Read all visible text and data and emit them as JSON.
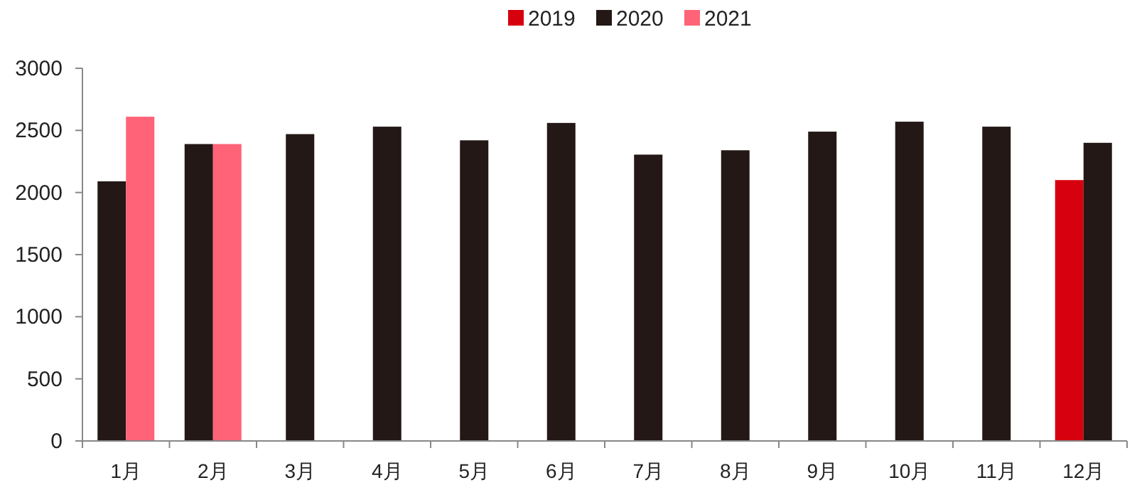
{
  "chart_data": {
    "type": "bar",
    "categories": [
      "1月",
      "2月",
      "3月",
      "4月",
      "5月",
      "6月",
      "7月",
      "8月",
      "9月",
      "10月",
      "11月",
      "12月"
    ],
    "series": [
      {
        "name": "2019",
        "color": "#d7000f",
        "values": [
          null,
          null,
          null,
          null,
          null,
          null,
          null,
          null,
          null,
          null,
          null,
          2100
        ]
      },
      {
        "name": "2020",
        "color": "#231815",
        "values": [
          2090,
          2390,
          2470,
          2530,
          2420,
          2560,
          2305,
          2340,
          2490,
          2570,
          2530,
          2400
        ]
      },
      {
        "name": "2021",
        "color": "#ff6378",
        "values": [
          2610,
          2390,
          null,
          null,
          null,
          null,
          null,
          null,
          null,
          null,
          null,
          null
        ]
      }
    ],
    "ylim": [
      0,
      3000
    ],
    "yticks": [
      0,
      500,
      1000,
      1500,
      2000,
      2500,
      3000
    ],
    "grid": false,
    "legend": "top"
  }
}
